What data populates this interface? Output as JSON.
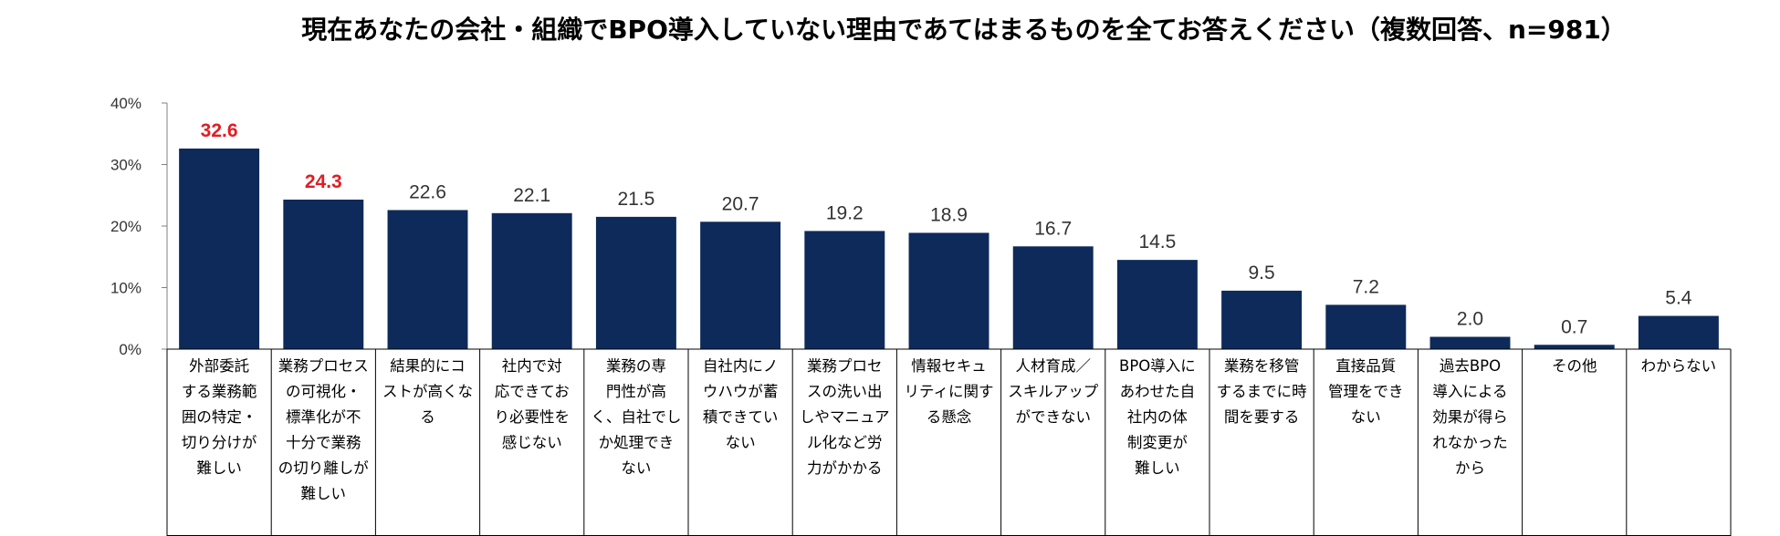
{
  "chart_data": {
    "type": "bar",
    "title": "現在あなたの会社・組織でBPO導入していない理由であてはまるものを全てお答えください（複数回答、n=981）",
    "xlabel": "",
    "ylabel": "",
    "ylim": [
      0,
      40
    ],
    "yticks": [
      "0%",
      "10%",
      "20%",
      "30%",
      "40%"
    ],
    "ytick_values": [
      0,
      10,
      20,
      30,
      40
    ],
    "grid": false,
    "bar_color": "#0d2a5a",
    "highlight_color": "#e31b23",
    "categories": [
      [
        "外部委託",
        "する業務範",
        "囲の特定・",
        "切り分けが",
        "難しい"
      ],
      [
        "業務プロセス",
        "の可視化・",
        "標準化が不",
        "十分で業務",
        "の切り離しが",
        "難しい"
      ],
      [
        "結果的にコ",
        "ストが高くな",
        "る"
      ],
      [
        "社内で対",
        "応できてお",
        "り必要性を",
        "感じない"
      ],
      [
        "業務の専",
        "門性が高",
        "く、自社でし",
        "か処理でき",
        "ない"
      ],
      [
        "自社内にノ",
        "ウハウが蓄",
        "積できてい",
        "ない"
      ],
      [
        "業務プロセ",
        "スの洗い出",
        "しやマニュア",
        "ル化など労",
        "力がかかる"
      ],
      [
        "情報セキュ",
        "リティに関す",
        "る懸念"
      ],
      [
        "人材育成／",
        "スキルアップ",
        "ができない"
      ],
      [
        "BPO導入に",
        "あわせた自",
        "社内の体",
        "制変更が",
        "難しい"
      ],
      [
        "業務を移管",
        "するまでに時",
        "間を要する"
      ],
      [
        "直接品質",
        "管理をでき",
        "ない"
      ],
      [
        "過去BPO",
        "導入による",
        "効果が得ら",
        "れなかった",
        "から"
      ],
      [
        "その他"
      ],
      [
        "わからない"
      ]
    ],
    "values": [
      32.6,
      24.3,
      22.6,
      22.1,
      21.5,
      20.7,
      19.2,
      18.9,
      16.7,
      14.5,
      9.5,
      7.2,
      2.0,
      0.7,
      5.4
    ],
    "value_labels": [
      "32.6",
      "24.3",
      "22.6",
      "22.1",
      "21.5",
      "20.7",
      "19.2",
      "18.9",
      "16.7",
      "14.5",
      "9.5",
      "7.2",
      "2.0",
      "0.7",
      "5.4"
    ],
    "highlighted": [
      true,
      true,
      false,
      false,
      false,
      false,
      false,
      false,
      false,
      false,
      false,
      false,
      false,
      false,
      false
    ]
  }
}
